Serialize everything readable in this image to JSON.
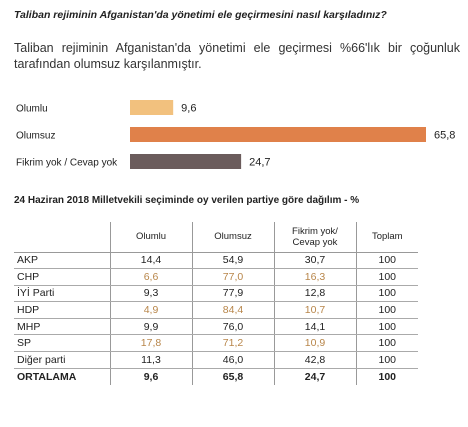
{
  "header": {
    "question": "Taliban rejiminin Afganistan'da yönetimi ele geçirmesini nasıl karşıladınız?",
    "subtitle": "Taliban rejiminin Afganistan'da yönetimi ele geçirmesi %66'lık bir çoğunluk tarafından olumsuz karşılanmıştır."
  },
  "chart_data": {
    "type": "bar",
    "orientation": "horizontal",
    "categories": [
      "Olumlu",
      "Olumsuz",
      "Fikrim yok / Cevap yok"
    ],
    "values": [
      9.6,
      65.8,
      24.7
    ],
    "value_labels": [
      "9,6",
      "65,8",
      "24,7"
    ],
    "colors": [
      "#f2c17e",
      "#e0814a",
      "#6b5c5c"
    ],
    "xlim": [
      0,
      65.8
    ]
  },
  "table": {
    "title": "24 Haziran 2018 Milletvekili seçiminde oy verilen partiye göre dağılım - %",
    "columns": [
      "Olumlu",
      "Olumsuz",
      "Fikrim yok/ Cevap yok",
      "Toplam"
    ],
    "rows": [
      {
        "party": "AKP",
        "values": [
          "14,4",
          "54,9",
          "30,7",
          "100"
        ],
        "muted": false
      },
      {
        "party": "CHP",
        "values": [
          "6,6",
          "77,0",
          "16,3",
          "100"
        ],
        "muted": true
      },
      {
        "party": "İYİ Parti",
        "values": [
          "9,3",
          "77,9",
          "12,8",
          "100"
        ],
        "muted": false
      },
      {
        "party": "HDP",
        "values": [
          "4,9",
          "84,4",
          "10,7",
          "100"
        ],
        "muted": true
      },
      {
        "party": "MHP",
        "values": [
          "9,9",
          "76,0",
          "14,1",
          "100"
        ],
        "muted": false
      },
      {
        "party": "SP",
        "values": [
          "17,8",
          "71,2",
          "10,9",
          "100"
        ],
        "muted": true
      },
      {
        "party": "Diğer parti",
        "values": [
          "11,3",
          "46,0",
          "42,8",
          "100"
        ],
        "muted": false
      }
    ],
    "average": {
      "party": "ORTALAMA",
      "values": [
        "9,6",
        "65,8",
        "24,7",
        "100"
      ]
    }
  }
}
